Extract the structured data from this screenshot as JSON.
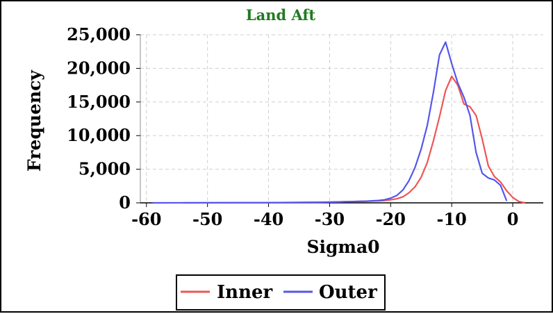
{
  "chart_data": {
    "type": "line",
    "title": "Land Aft",
    "title_color": "#1f7a1f",
    "xlabel": "Sigma0",
    "ylabel": "Frequency",
    "xlim": [
      -61,
      5
    ],
    "ylim": [
      0,
      25000
    ],
    "x_ticks": [
      -60,
      -50,
      -40,
      -30,
      -20,
      -10,
      0
    ],
    "x_tick_labels": [
      "-60",
      "-50",
      "-40",
      "-30",
      "-20",
      "-10",
      "0"
    ],
    "y_ticks": [
      0,
      5000,
      10000,
      15000,
      20000,
      25000
    ],
    "y_tick_labels": [
      "0",
      "5,000",
      "10,000",
      "15,000",
      "20,000",
      "25,000"
    ],
    "grid": true,
    "legend_position": "bottom-center",
    "series": [
      {
        "name": "Inner",
        "color": "#ee5555",
        "x": [
          -54,
          -40,
          -32,
          -28,
          -24,
          -22,
          -21,
          -20,
          -19,
          -18,
          -17,
          -16,
          -15,
          -14,
          -13,
          -12,
          -11,
          -10,
          -9,
          -8,
          -7,
          -6,
          -5,
          -4,
          -3,
          -2,
          -1,
          0,
          1,
          2
        ],
        "y": [
          0,
          20,
          60,
          150,
          250,
          300,
          350,
          450,
          600,
          900,
          1500,
          2400,
          3800,
          6000,
          9200,
          12800,
          16700,
          18800,
          17500,
          14700,
          14300,
          13000,
          9500,
          5500,
          3900,
          3100,
          1800,
          800,
          200,
          0
        ]
      },
      {
        "name": "Outer",
        "color": "#5555ee",
        "x": [
          -59,
          -50,
          -40,
          -30,
          -26,
          -24,
          -22,
          -21,
          -20,
          -19,
          -18,
          -17,
          -16,
          -15,
          -14,
          -13,
          -12,
          -11,
          -10,
          -9,
          -8,
          -7,
          -6,
          -5,
          -4,
          -3,
          -2,
          -1
        ],
        "y": [
          0,
          10,
          30,
          100,
          200,
          250,
          350,
          450,
          700,
          1100,
          1900,
          3300,
          5300,
          8000,
          11500,
          16400,
          22000,
          23900,
          20700,
          17800,
          15700,
          13000,
          7500,
          4400,
          3700,
          3400,
          2600,
          300
        ]
      }
    ]
  }
}
